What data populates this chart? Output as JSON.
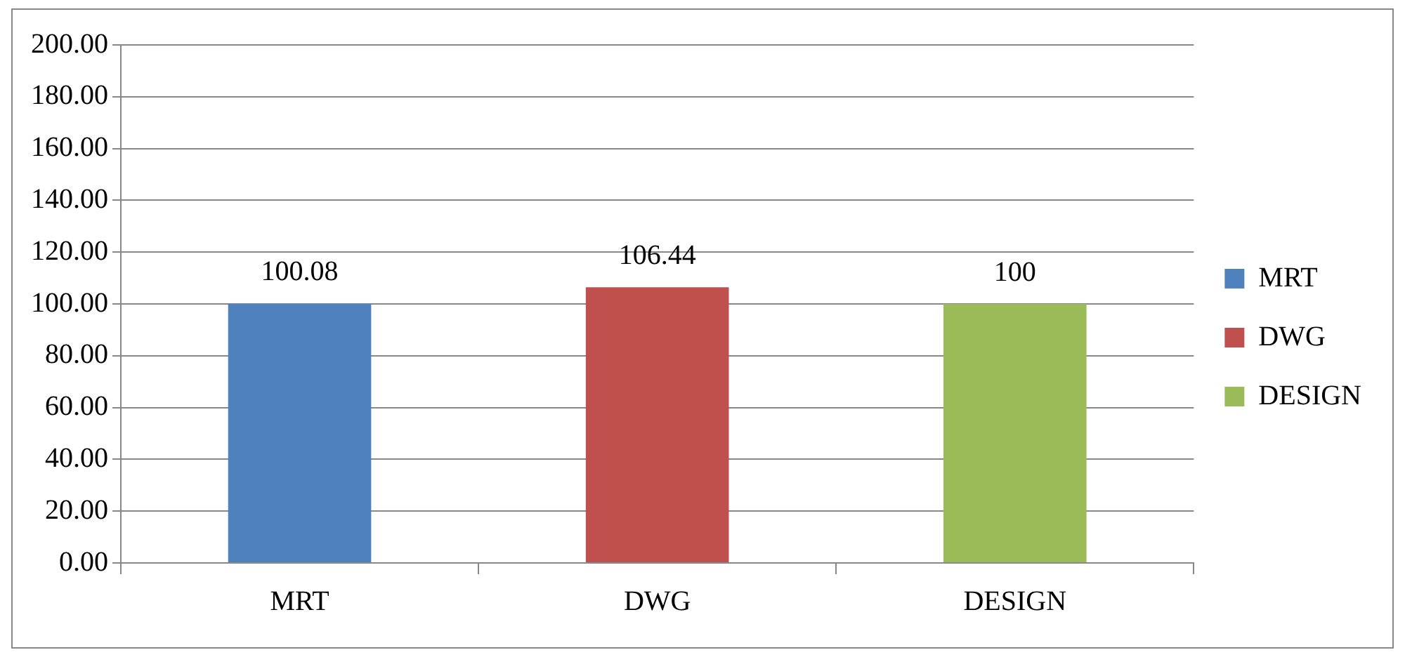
{
  "chart_data": {
    "type": "bar",
    "categories": [
      "MRT",
      "DWG",
      "DESIGN"
    ],
    "series": [
      {
        "name": "MRT",
        "color": "#4f81bd",
        "values": [
          100.08,
          null,
          null
        ],
        "value_labels": [
          "100.08",
          null,
          null
        ]
      },
      {
        "name": "DWG",
        "color": "#c0504d",
        "values": [
          null,
          106.44,
          null
        ],
        "value_labels": [
          null,
          "106.44",
          null
        ]
      },
      {
        "name": "DESIGN",
        "color": "#9bbb59",
        "values": [
          null,
          null,
          100
        ],
        "value_labels": [
          null,
          null,
          "100"
        ]
      }
    ],
    "ylim": [
      0,
      200
    ],
    "yticks": [
      {
        "value": 0,
        "label": "0.00"
      },
      {
        "value": 20,
        "label": "20.00"
      },
      {
        "value": 40,
        "label": "40.00"
      },
      {
        "value": 60,
        "label": "60.00"
      },
      {
        "value": 80,
        "label": "80.00"
      },
      {
        "value": 100,
        "label": "100.00"
      },
      {
        "value": 120,
        "label": "120.00"
      },
      {
        "value": 140,
        "label": "140.00"
      },
      {
        "value": 160,
        "label": "160.00"
      },
      {
        "value": 180,
        "label": "180.00"
      },
      {
        "value": 200,
        "label": "200.00"
      }
    ],
    "grid": "y",
    "legend": "right"
  }
}
